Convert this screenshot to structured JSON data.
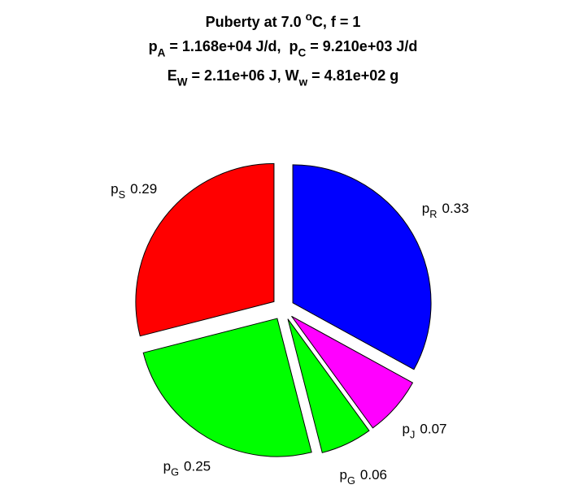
{
  "chart_data": {
    "type": "pie",
    "title_lines": [
      [
        {
          "text": "Puberty at 7.0 "
        },
        {
          "sup": "o"
        },
        {
          "text": "C, f = 1"
        }
      ],
      [
        {
          "text": "p"
        },
        {
          "sub": "A"
        },
        {
          "text": " = 1.168e+04 J/d,  p"
        },
        {
          "sub": "C"
        },
        {
          "text": " = 9.210e+03 J/d"
        }
      ],
      [
        {
          "text": "E"
        },
        {
          "sub": "W"
        },
        {
          "text": " = 2.11e+06 J, W"
        },
        {
          "sub": "w"
        },
        {
          "text": " = 4.81e+02 g"
        }
      ]
    ],
    "labels": [
      [
        {
          "text": "p"
        },
        {
          "sub": "R"
        }
      ],
      [
        {
          "text": "p"
        },
        {
          "sub": "J"
        }
      ],
      [
        {
          "text": "p"
        },
        {
          "sub": "G"
        }
      ],
      [
        {
          "text": "p"
        },
        {
          "sub": "G"
        }
      ],
      [
        {
          "text": "p"
        },
        {
          "sub": "S"
        }
      ]
    ],
    "values": [
      0.33,
      0.07,
      0.06,
      0.25,
      0.29
    ],
    "colors": [
      "#0000ff",
      "#ff00ff",
      "#00ff00",
      "#00ff00",
      "#ff0000"
    ],
    "direction": "clockwise",
    "start": "top",
    "explode": true
  }
}
